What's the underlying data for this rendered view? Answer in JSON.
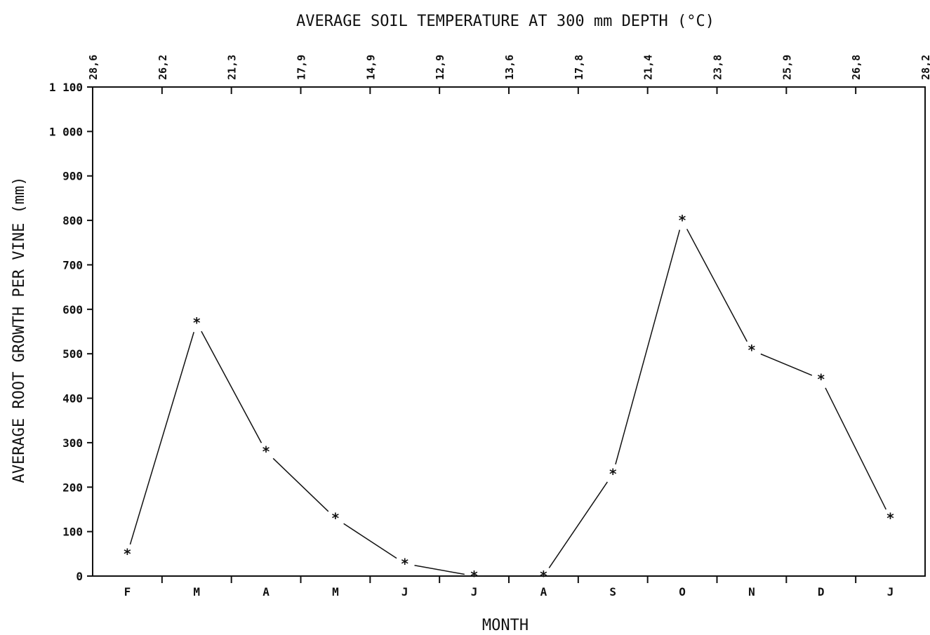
{
  "chart_data": {
    "type": "line",
    "title": "AVERAGE SOIL TEMPERATURE AT 300 mm DEPTH (°C)",
    "xlabel": "MONTH",
    "ylabel": "AVERAGE ROOT GROWTH PER VINE (mm)",
    "categories": [
      "F",
      "M",
      "A",
      "M",
      "J",
      "J",
      "A",
      "S",
      "O",
      "N",
      "D",
      "J"
    ],
    "values": [
      50,
      570,
      280,
      130,
      28,
      0,
      0,
      230,
      800,
      508,
      443,
      130
    ],
    "ylim": [
      0,
      1100
    ],
    "yticks": [
      {
        "value": 0,
        "label": "0"
      },
      {
        "value": 100,
        "label": "100"
      },
      {
        "value": 200,
        "label": "200"
      },
      {
        "value": 300,
        "label": "300"
      },
      {
        "value": 400,
        "label": "400"
      },
      {
        "value": 500,
        "label": "500"
      },
      {
        "value": 600,
        "label": "600"
      },
      {
        "value": 700,
        "label": "700"
      },
      {
        "value": 800,
        "label": "800"
      },
      {
        "value": 900,
        "label": "900"
      },
      {
        "value": 1000,
        "label": "1 000"
      },
      {
        "value": 1100,
        "label": "1 100"
      }
    ],
    "top_axis_labels": [
      "28,6",
      "26,2",
      "21,3",
      "17,9",
      "14,9",
      "12,9",
      "13,6",
      "17,8",
      "21,4",
      "23,8",
      "25,9",
      "26,8",
      "28,2"
    ],
    "marker": "asterisk",
    "color": "#111111",
    "grid": false
  }
}
